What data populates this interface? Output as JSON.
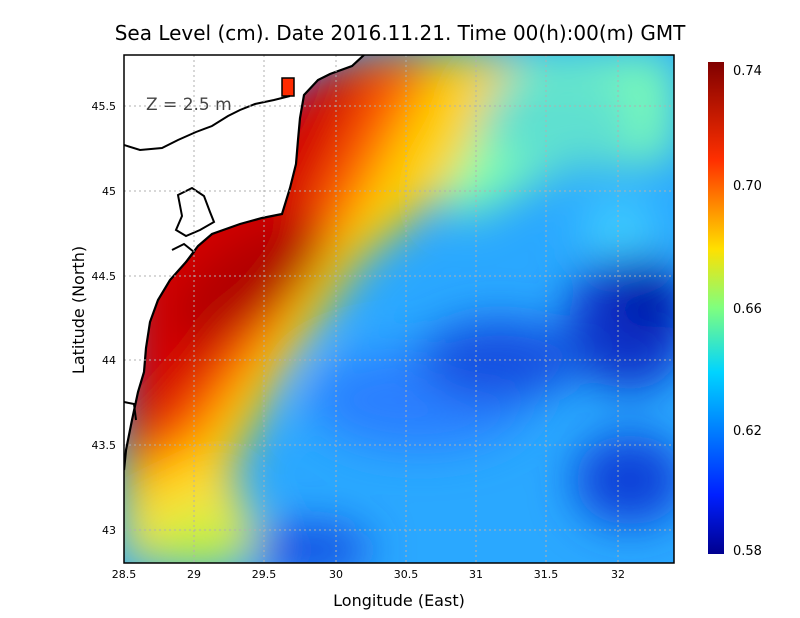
{
  "title": "Sea Level (cm). Date 2016.11.21. Time 00(h):00(m) GMT",
  "depth_label": "Z = 2.5 m",
  "chart_data": {
    "type": "heatmap",
    "title": "Sea Level (cm). Date 2016.11.21. Time 00(h):00(m) GMT",
    "xlabel": "Longitude (East)",
    "ylabel": "Latitude (North)",
    "xlim": [
      28.5,
      32.4
    ],
    "ylim": [
      42.8,
      45.8
    ],
    "x_ticks": [
      "28.5",
      "29",
      "29.5",
      "30",
      "30.5",
      "31",
      "31.5",
      "32"
    ],
    "y_ticks": [
      "43",
      "43.5",
      "44",
      "44.5",
      "45",
      "45.5"
    ],
    "grid": true,
    "colorbar": {
      "range": [
        0.58,
        0.74
      ],
      "ticks": [
        "0.74",
        "0.70",
        "0.66",
        "0.62",
        "0.58"
      ],
      "colormap": "jet",
      "placement": "right"
    },
    "features": [
      {
        "region": "coastal band 44-45.5N, 28.7-30E",
        "value": 0.74
      },
      {
        "region": "offshore 31-32.4E, 43-44.5N",
        "value": 0.6
      }
    ]
  },
  "colors": {
    "land": "#ffffff",
    "coastline": "#000000",
    "grid": "#b0b0b0"
  }
}
